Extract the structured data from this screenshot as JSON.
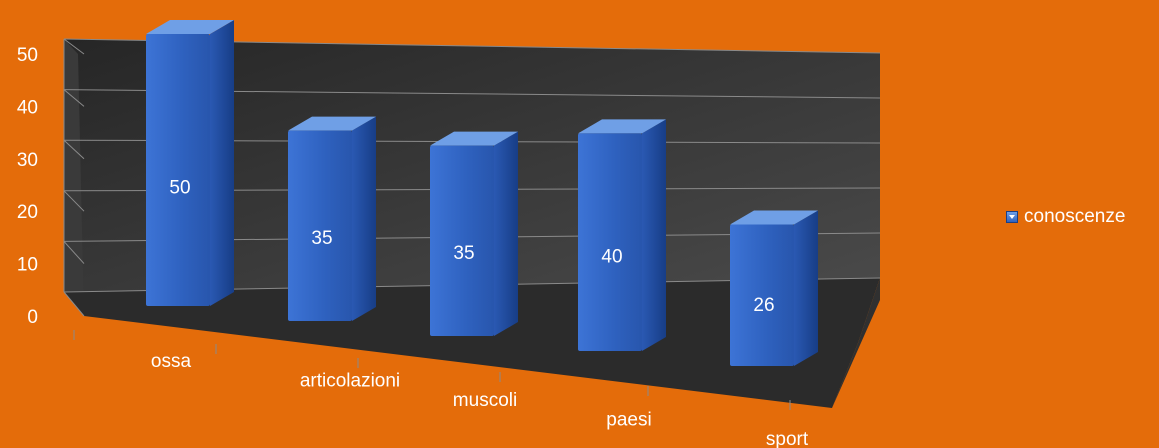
{
  "chart_data": {
    "type": "bar",
    "categories": [
      "ossa",
      "articolazioni",
      "muscoli",
      "paesi",
      "sport"
    ],
    "series": [
      {
        "name": "conoscenze",
        "values": [
          50,
          35,
          35,
          40,
          26
        ]
      }
    ],
    "value_labels": [
      "50",
      "35",
      "35",
      "40",
      "26"
    ],
    "y_ticks": [
      "0",
      "10",
      "20",
      "30",
      "40",
      "50"
    ],
    "ylim": [
      0,
      50
    ],
    "title": "",
    "xlabel": "",
    "ylabel": "",
    "grid": true,
    "legend_position": "right",
    "style": "3d-column",
    "colors": {
      "background": "#E46C0A",
      "plot_wall": "#3a3a3a",
      "floor": "#2b2b2b",
      "bar_front": "#2f62c0",
      "bar_top": "#6f9fe6",
      "bar_side": "#1f4a9e",
      "text": "#ffffff"
    }
  },
  "legend": {
    "label": "conoscenze"
  }
}
